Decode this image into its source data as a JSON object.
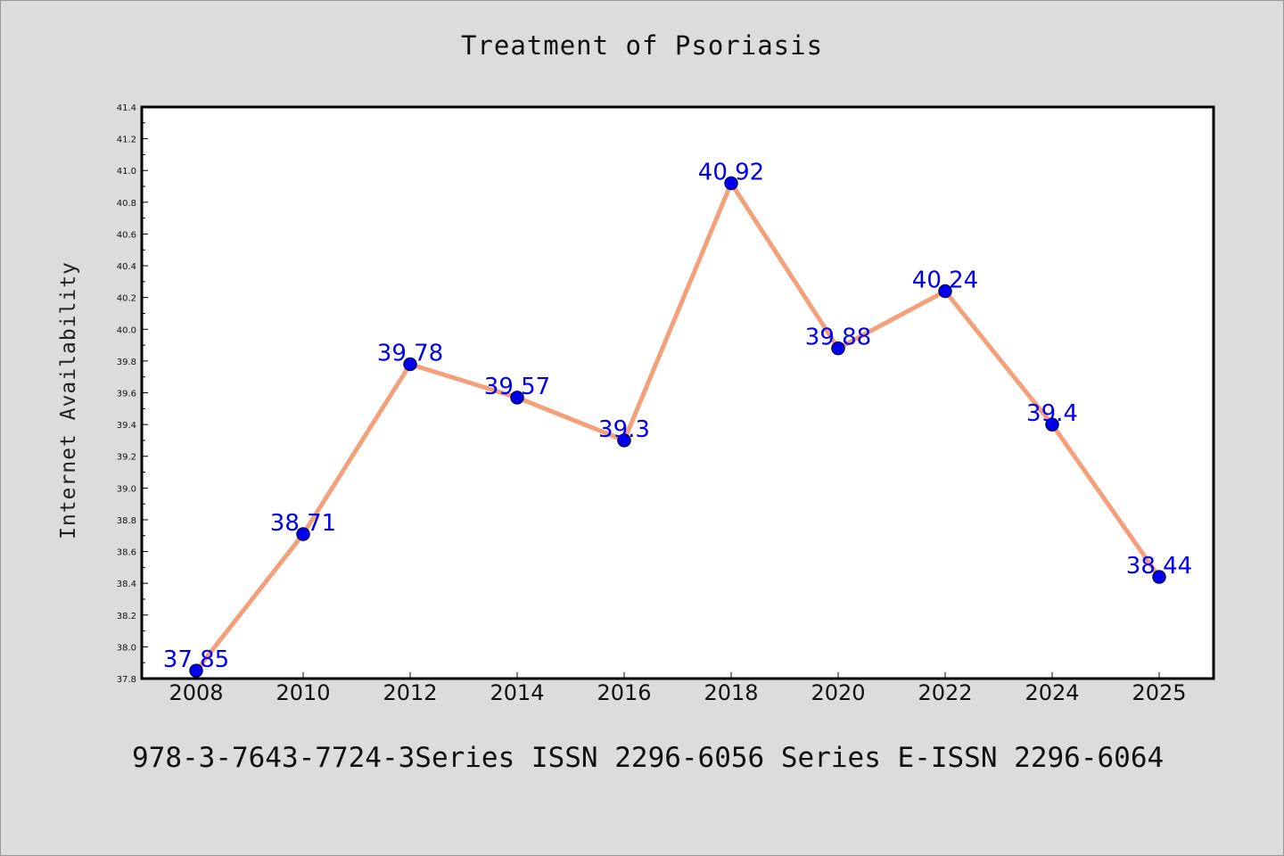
{
  "page": {
    "title": "Treatment of Psoriasis",
    "footer": "978-3-7643-7724-3Series ISSN 2296-6056 Series E-ISSN 2296-6064"
  },
  "colors": {
    "background": "#dcdcdc",
    "plot_background": "#ffffff",
    "line": "#f4a07a",
    "marker": "#0000ee",
    "data_label": "#0000ee"
  },
  "chart_data": {
    "type": "line",
    "title": "Treatment of Psoriasis",
    "xlabel": "",
    "ylabel": "Internet Availability",
    "categories": [
      "2008",
      "2010",
      "2012",
      "2014",
      "2016",
      "2018",
      "2020",
      "2022",
      "2024",
      "2025"
    ],
    "series": [
      {
        "values": [
          37.85,
          38.71,
          39.78,
          39.57,
          39.3,
          40.92,
          39.88,
          40.24,
          39.4,
          38.44
        ],
        "data_labels": [
          "37.85",
          "38.71",
          "39.78",
          "39.57",
          "39.3",
          "40.92",
          "39.88",
          "40.24",
          "39.4",
          "38.44"
        ],
        "color": "#f4a07a",
        "marker_color": "#0000ee"
      }
    ],
    "ylim": [
      37.8,
      41.4
    ],
    "yticks": [
      "37.8",
      "38.0",
      "38.2",
      "38.4",
      "38.6",
      "38.8",
      "39.0",
      "39.2",
      "39.4",
      "39.6",
      "39.8",
      "40.0",
      "40.2",
      "40.4",
      "40.6",
      "40.8",
      "41.0",
      "41.2",
      "41.4"
    ],
    "grid": false,
    "legend": "none"
  }
}
